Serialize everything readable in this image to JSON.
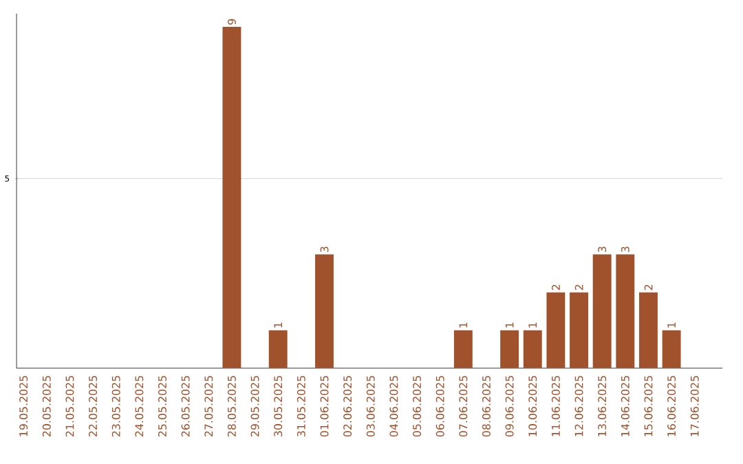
{
  "chart_data": {
    "type": "bar",
    "categories": [
      "19.05.2025",
      "20.05.2025",
      "21.05.2025",
      "22.05.2025",
      "23.05.2025",
      "24.05.2025",
      "25.05.2025",
      "26.05.2025",
      "27.05.2025",
      "28.05.2025",
      "29.05.2025",
      "30.05.2025",
      "31.05.2025",
      "01.06.2025",
      "02.06.2025",
      "03.06.2025",
      "04.06.2025",
      "05.06.2025",
      "06.06.2025",
      "07.06.2025",
      "08.06.2025",
      "09.06.2025",
      "10.06.2025",
      "11.06.2025",
      "12.06.2025",
      "13.06.2025",
      "14.06.2025",
      "15.06.2025",
      "16.06.2025",
      "17.06.2025"
    ],
    "values": [
      0,
      0,
      0,
      0,
      0,
      0,
      0,
      0,
      0,
      9,
      0,
      1,
      0,
      3,
      0,
      0,
      0,
      0,
      0,
      1,
      0,
      1,
      1,
      2,
      2,
      3,
      3,
      2,
      1,
      0
    ],
    "value_labels": [
      null,
      null,
      null,
      null,
      null,
      null,
      null,
      null,
      null,
      "9",
      null,
      "1",
      null,
      "3",
      null,
      null,
      null,
      null,
      null,
      "1",
      null,
      "1",
      "1",
      "2",
      "2",
      "3",
      "3",
      "2",
      "1",
      null
    ],
    "color": "#a0522d",
    "ylim": [
      0,
      9.35
    ],
    "yticks": [
      5
    ],
    "grid": "y"
  }
}
